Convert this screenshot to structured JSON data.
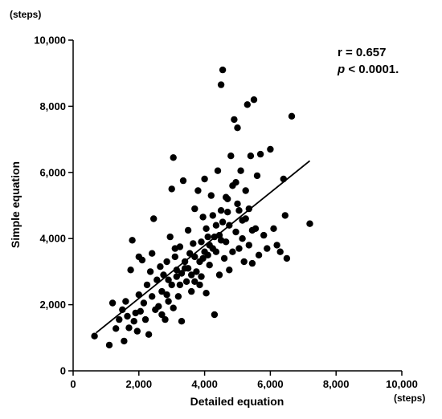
{
  "chart_data": {
    "type": "scatter",
    "xlabel": "Detailed equation",
    "ylabel": "Simple equation",
    "x_unit": "(steps)",
    "y_unit": "(steps)",
    "xlim": [
      0,
      10000
    ],
    "ylim": [
      0,
      10000
    ],
    "x_ticks": [
      0,
      2000,
      4000,
      6000,
      8000,
      10000
    ],
    "y_ticks": [
      0,
      2000,
      4000,
      6000,
      8000,
      10000
    ],
    "x_tick_labels": [
      "0",
      "2,000",
      "4,000",
      "6,000",
      "8,000",
      "10,000"
    ],
    "y_tick_labels": [
      "0",
      "2,000",
      "4,000",
      "6,000",
      "8,000",
      "10,000"
    ],
    "annotation": {
      "r_text": "r = 0.657",
      "p_symbol": "p",
      "p_text": " < 0.0001."
    },
    "regression_line": {
      "x": [
        700,
        7200
      ],
      "y": [
        1150,
        6350
      ]
    },
    "grid": false,
    "legend": "none",
    "series": [
      {
        "color": "#000000",
        "points": [
          [
            650,
            1050
          ],
          [
            1100,
            780
          ],
          [
            1200,
            2050
          ],
          [
            1300,
            1280
          ],
          [
            1400,
            1550
          ],
          [
            1500,
            1850
          ],
          [
            1550,
            900
          ],
          [
            1600,
            2100
          ],
          [
            1650,
            1650
          ],
          [
            1700,
            1300
          ],
          [
            1750,
            3050
          ],
          [
            1800,
            3950
          ],
          [
            1850,
            1500
          ],
          [
            1900,
            1750
          ],
          [
            1950,
            1200
          ],
          [
            2000,
            3450
          ],
          [
            2000,
            2300
          ],
          [
            2050,
            1800
          ],
          [
            2100,
            3350
          ],
          [
            2150,
            2050
          ],
          [
            2200,
            1550
          ],
          [
            2250,
            2600
          ],
          [
            2300,
            1100
          ],
          [
            2350,
            3000
          ],
          [
            2400,
            3550
          ],
          [
            2400,
            2250
          ],
          [
            2450,
            4600
          ],
          [
            2500,
            1850
          ],
          [
            2550,
            2750
          ],
          [
            2600,
            1950
          ],
          [
            2650,
            3150
          ],
          [
            2700,
            2400
          ],
          [
            2750,
            2900
          ],
          [
            2800,
            1550
          ],
          [
            2850,
            3300
          ],
          [
            2900,
            2100
          ],
          [
            2950,
            4050
          ],
          [
            3000,
            2600
          ],
          [
            3000,
            5500
          ],
          [
            3050,
            6450
          ],
          [
            3100,
            3450
          ],
          [
            3150,
            2850
          ],
          [
            3200,
            2250
          ],
          [
            3250,
            3750
          ],
          [
            3300,
            1500
          ],
          [
            3350,
            5750
          ],
          [
            3400,
            3100
          ],
          [
            3450,
            2700
          ],
          [
            3500,
            4250
          ],
          [
            3550,
            3550
          ],
          [
            3600,
            2400
          ],
          [
            3650,
            3850
          ],
          [
            3700,
            4900
          ],
          [
            3750,
            3000
          ],
          [
            3800,
            5450
          ],
          [
            3850,
            3300
          ],
          [
            3900,
            2850
          ],
          [
            3950,
            4650
          ],
          [
            4000,
            3600
          ],
          [
            4000,
            5800
          ],
          [
            4050,
            2350
          ],
          [
            4100,
            4050
          ],
          [
            4150,
            3200
          ],
          [
            4200,
            5300
          ],
          [
            4250,
            3700
          ],
          [
            4300,
            1700
          ],
          [
            4350,
            4400
          ],
          [
            4400,
            6050
          ],
          [
            4450,
            2900
          ],
          [
            4500,
            3950
          ],
          [
            4500,
            8650
          ],
          [
            4550,
            9100
          ],
          [
            4600,
            3400
          ],
          [
            4650,
            5250
          ],
          [
            4700,
            4800
          ],
          [
            4750,
            3050
          ],
          [
            4800,
            6500
          ],
          [
            4850,
            5600
          ],
          [
            4900,
            7600
          ],
          [
            4950,
            4200
          ],
          [
            5000,
            7350
          ],
          [
            5000,
            5050
          ],
          [
            5050,
            3700
          ],
          [
            5100,
            6050
          ],
          [
            5150,
            4550
          ],
          [
            5200,
            3300
          ],
          [
            5250,
            5450
          ],
          [
            5300,
            8050
          ],
          [
            5350,
            4900
          ],
          [
            5400,
            6500
          ],
          [
            5450,
            3250
          ],
          [
            5500,
            8200
          ],
          [
            5550,
            4300
          ],
          [
            5600,
            5900
          ],
          [
            5650,
            3500
          ],
          [
            5700,
            6550
          ],
          [
            5800,
            4100
          ],
          [
            5900,
            3700
          ],
          [
            6000,
            6700
          ],
          [
            6100,
            4300
          ],
          [
            6200,
            3800
          ],
          [
            6300,
            3600
          ],
          [
            6400,
            5800
          ],
          [
            6450,
            4700
          ],
          [
            6500,
            3400
          ],
          [
            6650,
            7700
          ],
          [
            7200,
            4450
          ],
          [
            2700,
            1700
          ],
          [
            2850,
            2300
          ],
          [
            3050,
            1900
          ],
          [
            3150,
            3050
          ],
          [
            3250,
            2600
          ],
          [
            3400,
            3300
          ],
          [
            3600,
            2900
          ],
          [
            3700,
            3450
          ],
          [
            3850,
            2600
          ],
          [
            3950,
            3400
          ],
          [
            4050,
            4300
          ],
          [
            4150,
            3800
          ],
          [
            4250,
            4700
          ],
          [
            4350,
            3600
          ],
          [
            4450,
            4100
          ],
          [
            4550,
            4500
          ],
          [
            4650,
            3900
          ],
          [
            4750,
            4400
          ],
          [
            4850,
            3600
          ],
          [
            4950,
            5700
          ],
          [
            5050,
            4850
          ],
          [
            5150,
            4000
          ],
          [
            5250,
            4600
          ],
          [
            5350,
            3800
          ],
          [
            5450,
            4250
          ],
          [
            2900,
            2750
          ],
          [
            3100,
            3700
          ],
          [
            3300,
            2950
          ],
          [
            3500,
            3100
          ],
          [
            3700,
            2700
          ],
          [
            3900,
            3900
          ],
          [
            4100,
            3500
          ],
          [
            4300,
            4050
          ],
          [
            4500,
            4850
          ],
          [
            4700,
            5200
          ]
        ]
      }
    ]
  }
}
